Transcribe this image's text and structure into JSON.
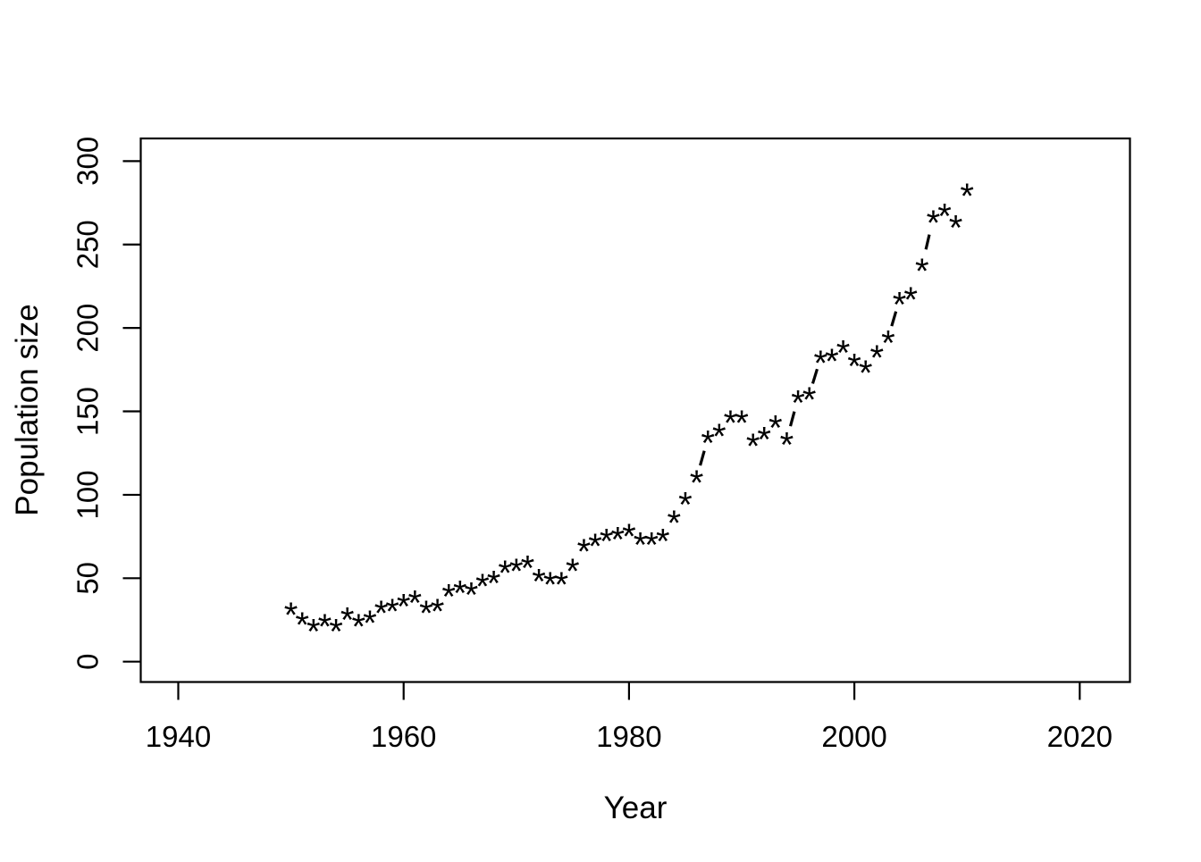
{
  "chart_data": {
    "type": "scatter",
    "title": "",
    "xlabel": "Year",
    "ylabel": "Population size",
    "marker": "*",
    "line_style": "dashed-segments-between-distant-points",
    "grid": false,
    "legend": "none",
    "colors": {
      "foreground": "#000000",
      "background": "#ffffff"
    },
    "x_ticks": [
      1940,
      1960,
      1980,
      2000,
      2020
    ],
    "y_ticks": [
      0,
      50,
      100,
      150,
      200,
      250,
      300
    ],
    "xlim": [
      1936.5,
      2024.5
    ],
    "ylim": [
      0,
      300
    ],
    "x": [
      1950,
      1951,
      1952,
      1953,
      1954,
      1955,
      1956,
      1957,
      1958,
      1959,
      1960,
      1961,
      1962,
      1963,
      1964,
      1965,
      1966,
      1967,
      1968,
      1969,
      1970,
      1971,
      1972,
      1973,
      1974,
      1975,
      1976,
      1977,
      1978,
      1979,
      1980,
      1981,
      1982,
      1983,
      1984,
      1985,
      1986,
      1987,
      1988,
      1989,
      1990,
      1991,
      1992,
      1993,
      1994,
      1995,
      1996,
      1997,
      1998,
      1999,
      2000,
      2001,
      2002,
      2003,
      2004,
      2005,
      2006,
      2007,
      2008,
      2009,
      2010
    ],
    "values": [
      31,
      25,
      21,
      24,
      21,
      28,
      24,
      26,
      32,
      33,
      36,
      38,
      32,
      33,
      42,
      44,
      43,
      48,
      50,
      56,
      57,
      59,
      51,
      49,
      49,
      57,
      69,
      72,
      75,
      76,
      78,
      73,
      73,
      75,
      86,
      97,
      110,
      134,
      138,
      146,
      146,
      132,
      136,
      143,
      133,
      158,
      160,
      182,
      183,
      188,
      180,
      176,
      185,
      194,
      217,
      220,
      237,
      266,
      270,
      263,
      282
    ]
  }
}
